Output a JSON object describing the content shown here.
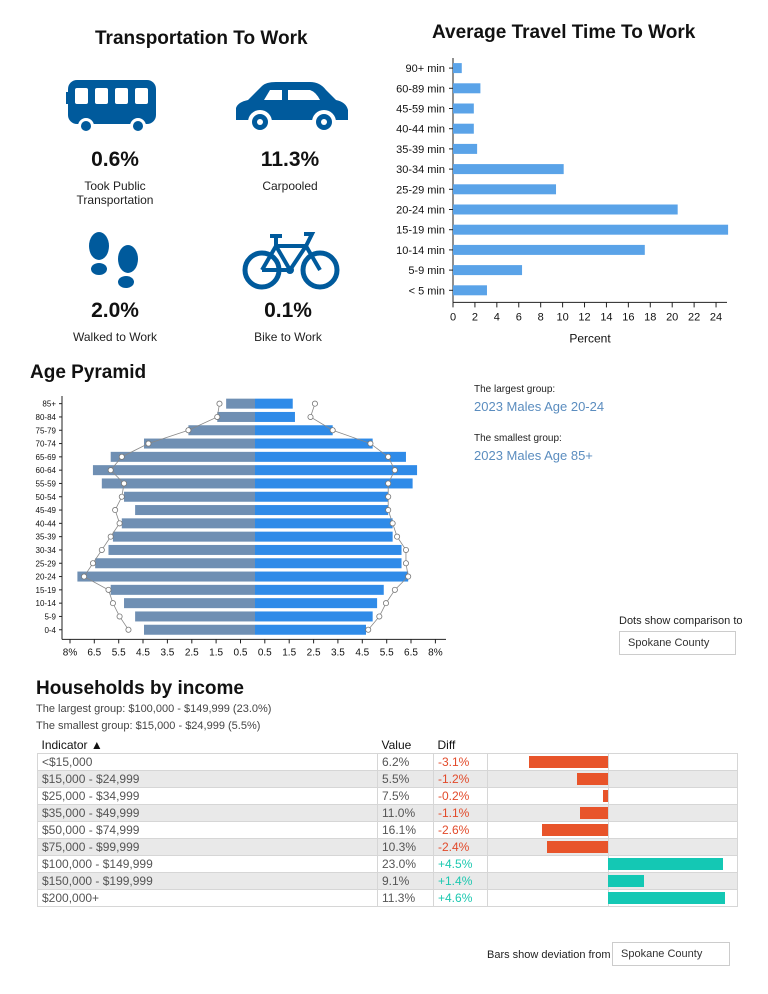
{
  "transport": {
    "title": "Transportation To Work",
    "items": [
      {
        "icon": "bus-icon",
        "value": "0.6%",
        "label_line1": "Took Public",
        "label_line2": "Transportation"
      },
      {
        "icon": "car-icon",
        "value": "11.3%",
        "label_line1": "Carpooled",
        "label_line2": ""
      },
      {
        "icon": "footprints-icon",
        "value": "2.0%",
        "label_line1": "Walked to Work",
        "label_line2": ""
      },
      {
        "icon": "bicycle-icon",
        "value": "0.1%",
        "label_line1": "Bike to Work",
        "label_line2": ""
      }
    ],
    "icon_color": "#005a9c"
  },
  "chart_data": [
    {
      "type": "bar",
      "orientation": "horizontal",
      "title": "Average Travel Time To Work",
      "xlabel": "Percent",
      "categories": [
        "< 5 min",
        "5-9 min",
        "10-14 min",
        "15-19 min",
        "20-24 min",
        "25-29 min",
        "30-34 min",
        "35-39 min",
        "40-44 min",
        "45-59 min",
        "60-89 min",
        "90+ min"
      ],
      "values": [
        3.1,
        6.3,
        17.5,
        25.1,
        20.5,
        9.4,
        10.1,
        2.2,
        1.9,
        1.9,
        2.5,
        0.8
      ],
      "xticks": [
        "0",
        "2",
        "4",
        "6",
        "8",
        "10",
        "12",
        "14",
        "16",
        "18",
        "20",
        "22",
        "24"
      ],
      "xlim": [
        0,
        25
      ],
      "color": "#5aa3e8"
    },
    {
      "type": "bar",
      "subtype": "population-pyramid",
      "title": "Age Pyramid",
      "categories": [
        "0-4",
        "5-9",
        "10-14",
        "15-19",
        "20-24",
        "25-29",
        "30-34",
        "35-39",
        "40-44",
        "45-49",
        "50-54",
        "55-59",
        "60-64",
        "65-69",
        "70-74",
        "75-79",
        "80-84",
        "85+"
      ],
      "series": [
        {
          "side": "left",
          "color": "#6f8fb3",
          "values": [
            5.0,
            5.4,
            5.9,
            6.5,
            8.0,
            7.2,
            6.6,
            6.4,
            6.0,
            5.4,
            5.9,
            6.9,
            7.3,
            6.5,
            5.0,
            3.0,
            1.7,
            1.3
          ],
          "comparison": [
            5.7,
            6.1,
            6.4,
            6.6,
            7.7,
            7.3,
            6.9,
            6.5,
            6.1,
            6.3,
            6.0,
            5.9,
            6.5,
            6.0,
            4.8,
            3.0,
            1.7,
            1.6
          ]
        },
        {
          "side": "right",
          "color": "#2f8be8",
          "values": [
            5.0,
            5.3,
            5.5,
            5.8,
            6.9,
            6.6,
            6.6,
            6.2,
            6.2,
            6.0,
            6.0,
            7.1,
            7.3,
            6.8,
            5.3,
            3.5,
            1.8,
            1.7
          ],
          "comparison": [
            5.1,
            5.6,
            5.9,
            6.3,
            6.9,
            6.8,
            6.8,
            6.4,
            6.2,
            6.0,
            6.0,
            6.0,
            6.3,
            6.0,
            5.2,
            3.5,
            2.5,
            2.7
          ]
        }
      ],
      "xticks": [
        "8%",
        "6.5",
        "5.5",
        "4.5",
        "3.5",
        "2.5",
        "1.5",
        "0.5",
        "0.5",
        "1.5",
        "2.5",
        "3.5",
        "4.5",
        "5.5",
        "6.5",
        "8%"
      ],
      "xlim": [
        0,
        8
      ],
      "comparison_color": "#888888"
    },
    {
      "type": "table",
      "title": "Households by income",
      "columns": [
        "Indicator ▲",
        "Value",
        "Diff"
      ],
      "rows": [
        {
          "indicator": "<$15,000",
          "value": "6.2%",
          "diff": "-3.1%",
          "deviation": -3.1
        },
        {
          "indicator": "$15,000 - $24,999",
          "value": "5.5%",
          "diff": "-1.2%",
          "deviation": -1.2
        },
        {
          "indicator": "$25,000 - $34,999",
          "value": "7.5%",
          "diff": "-0.2%",
          "deviation": -0.2
        },
        {
          "indicator": "$35,000 - $49,999",
          "value": "11.0%",
          "diff": "-1.1%",
          "deviation": -1.1
        },
        {
          "indicator": "$50,000 - $74,999",
          "value": "16.1%",
          "diff": "-2.6%",
          "deviation": -2.6
        },
        {
          "indicator": "$75,000 - $99,999",
          "value": "10.3%",
          "diff": "-2.4%",
          "deviation": -2.4
        },
        {
          "indicator": "$100,000 - $149,999",
          "value": "23.0%",
          "diff": "+4.5%",
          "deviation": 4.5
        },
        {
          "indicator": "$150,000 - $199,999",
          "value": "9.1%",
          "diff": "+1.4%",
          "deviation": 1.4
        },
        {
          "indicator": "$200,000+",
          "value": "11.3%",
          "diff": "+4.6%",
          "deviation": 4.6
        }
      ],
      "neg_color": "#e8542a",
      "pos_color": "#14c8b4"
    }
  ],
  "pyramid_info": {
    "largest_label": "The largest group:",
    "largest_value": "2023 Males Age 20-24",
    "smallest_label": "The smallest group:",
    "smallest_value": "2023 Males Age 85+",
    "comparison_label": "Dots show comparison to",
    "comparison_value": "Spokane County"
  },
  "income": {
    "largest": "The largest group: $100,000 - $149,999 (23.0%)",
    "smallest": "The smallest group: $15,000 - $24,999 (5.5%)",
    "deviation_label": "Bars show deviation from",
    "deviation_value": "Spokane County"
  }
}
